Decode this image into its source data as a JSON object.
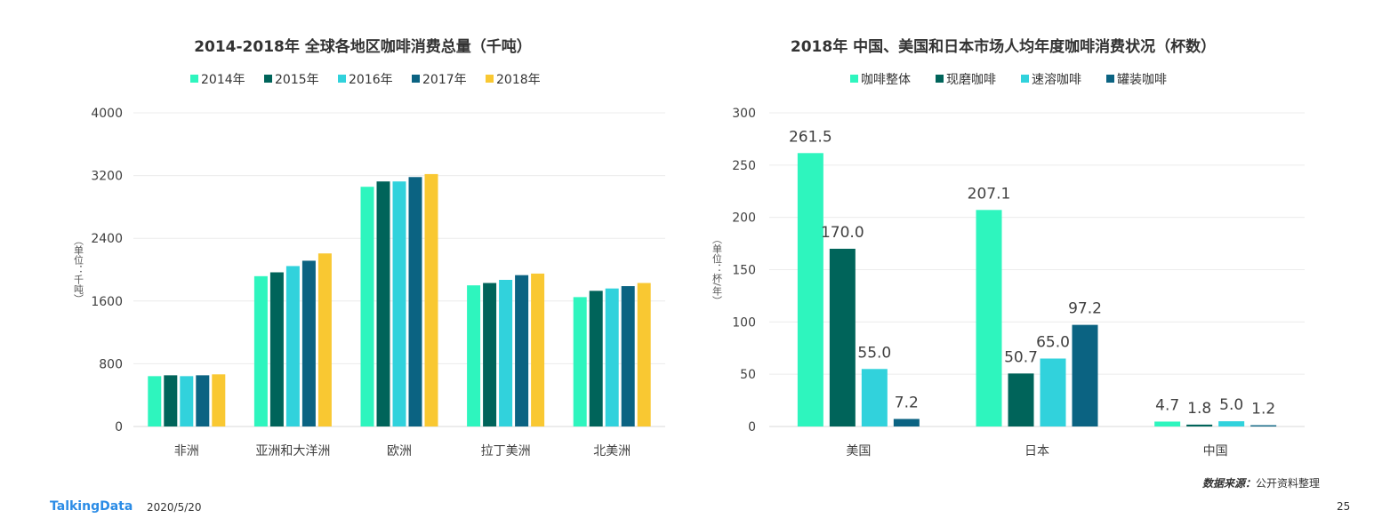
{
  "chart_data": [
    {
      "type": "bar",
      "title": "2014-2018年  全球各地区咖啡消费总量（千吨）",
      "ylabel": "（单位：千吨）",
      "ylim": [
        0,
        4000
      ],
      "yticks": [
        0,
        800,
        1600,
        2400,
        3200,
        4000
      ],
      "grid": true,
      "legend": "top",
      "categories": [
        "非洲",
        "亚洲和大洋洲",
        "欧洲",
        "拉丁美洲",
        "北美洲"
      ],
      "series": [
        {
          "name": "2014年",
          "color": "#2EF5BE",
          "values": [
            642,
            1917,
            3057,
            1800,
            1650
          ]
        },
        {
          "name": "2015年",
          "color": "#00645A",
          "values": [
            653,
            1966,
            3125,
            1830,
            1730
          ]
        },
        {
          "name": "2016年",
          "color": "#31D2DC",
          "values": [
            642,
            2046,
            3125,
            1870,
            1760
          ]
        },
        {
          "name": "2017年",
          "color": "#0B6382",
          "values": [
            653,
            2114,
            3181,
            1930,
            1790
          ]
        },
        {
          "name": "2018年",
          "color": "#F9C832",
          "values": [
            665,
            2207,
            3219,
            1950,
            1830
          ]
        }
      ]
    },
    {
      "type": "bar",
      "title": "2018年  中国、美国和日本市场人均年度咖啡消费状况（杯数）",
      "ylabel": "（单位：杯/年）",
      "ylim": [
        0,
        300
      ],
      "yticks": [
        0,
        50,
        100,
        150,
        200,
        250,
        300
      ],
      "grid": true,
      "legend": "top",
      "categories": [
        "美国",
        "日本",
        "中国"
      ],
      "series": [
        {
          "name": "咖啡整体",
          "color": "#2EF5BE",
          "values": [
            261.5,
            207.1,
            4.7
          ]
        },
        {
          "name": "现磨咖啡",
          "color": "#00645A",
          "values": [
            170.0,
            50.7,
            1.8
          ]
        },
        {
          "name": "速溶咖啡",
          "color": "#31D2DC",
          "values": [
            55.0,
            65.0,
            5.0
          ]
        },
        {
          "name": "罐装咖啡",
          "color": "#0B6382",
          "values": [
            7.2,
            97.2,
            1.2
          ]
        }
      ]
    }
  ],
  "footer": {
    "logo": "TalkingData",
    "date": "2020/5/20",
    "source_label": "数据来源：",
    "source_text": "公开资料整理",
    "page": "25"
  }
}
